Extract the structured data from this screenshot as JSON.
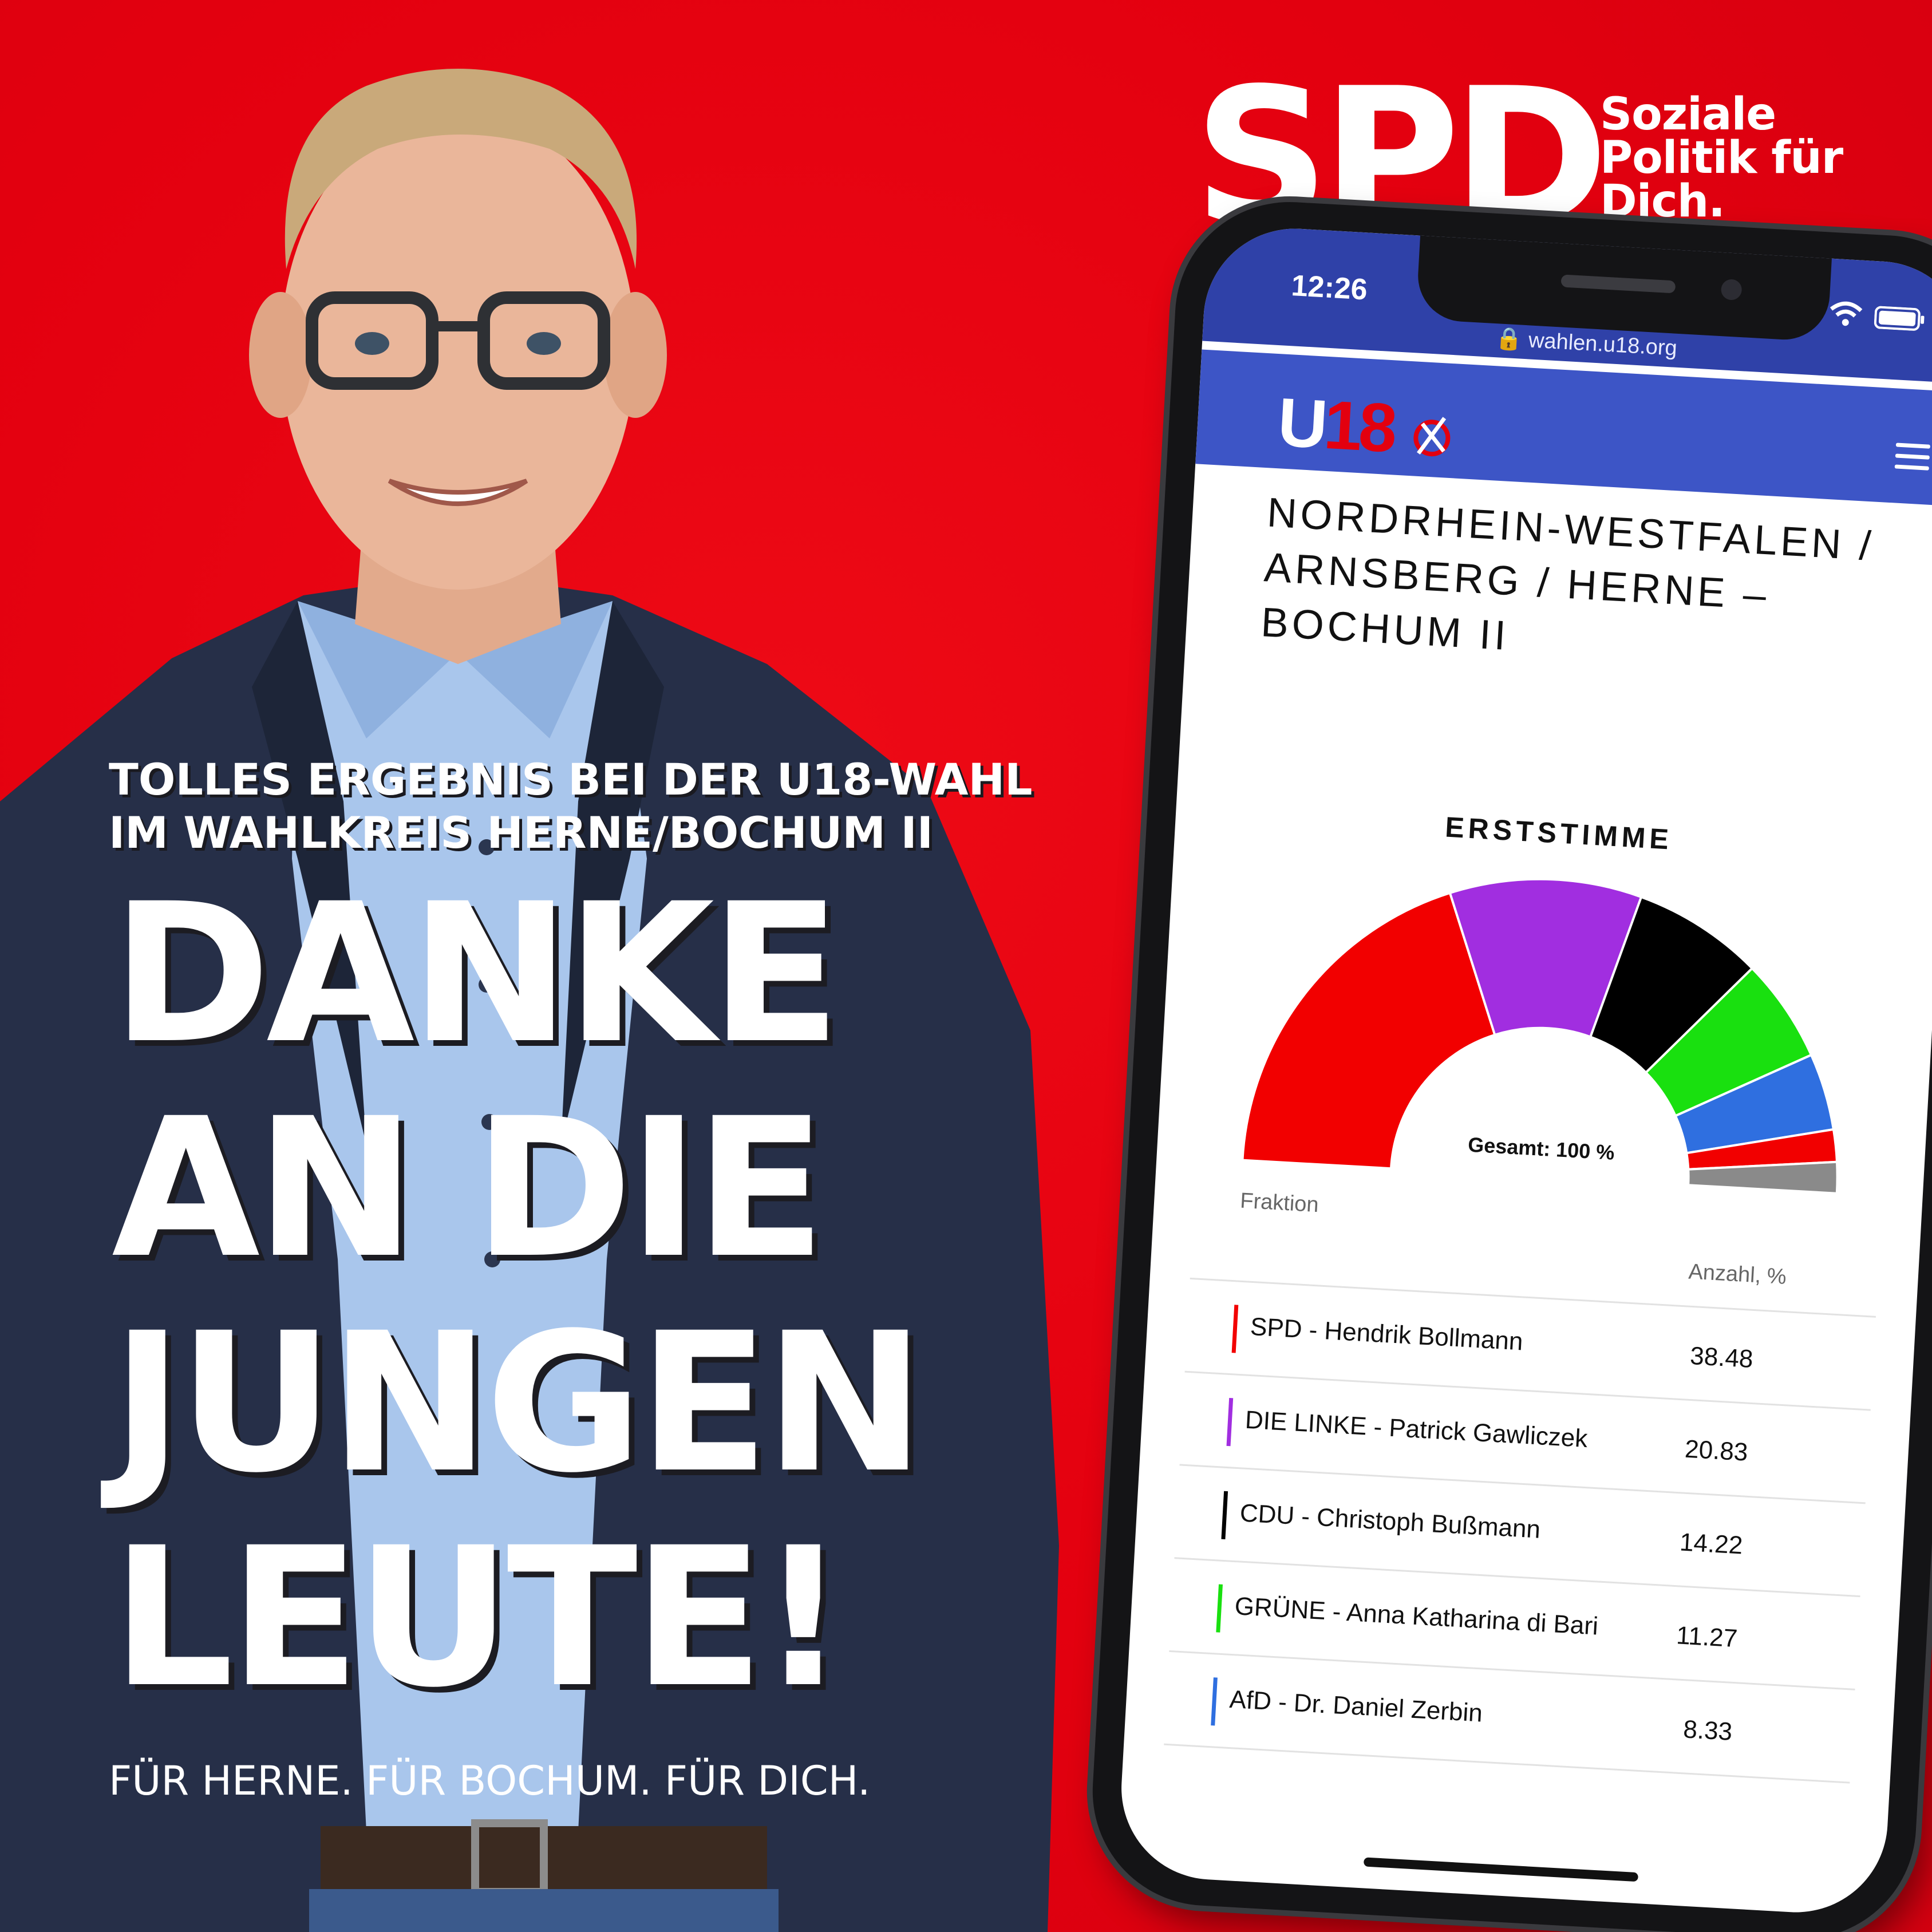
{
  "brand": {
    "logo": "SPD",
    "tagline": [
      "Soziale",
      "Politik für",
      "Dich."
    ]
  },
  "subtitle": [
    "TOLLES ERGEBNIS BEI DER U18-WAHL",
    "IM WAHLKREIS HERNE/BOCHUM II"
  ],
  "headline": [
    "DANKE",
    "AN DIE",
    "JUNGEN",
    "LEUTE!"
  ],
  "footer_slogan": "FÜR HERNE. FÜR BOCHUM. FÜR DICH.",
  "phone": {
    "time": "12:26",
    "url": "wahlen.u18.org",
    "site_logo_u": "U",
    "site_logo_18": "18",
    "region_title": "NORDRHEIN-WESTFALEN / ARNSBERG / HERNE – BOCHUM II",
    "chart_title": "ERSTSTIMME",
    "total_label": "Gesamt: 100 %",
    "table": {
      "col_party": "Fraktion",
      "col_value": "Anzahl, %"
    }
  },
  "chart_data": {
    "type": "pie",
    "title": "ERSTSTIMME",
    "categories": [
      "SPD - Hendrik Bollmann",
      "DIE LINKE - Patrick Gawliczek",
      "CDU - Christoph Bußmann",
      "GRÜNE - Anna Katharina di Bari",
      "AfD - Dr. Daniel Zerbin"
    ],
    "values": [
      38.48,
      20.83,
      14.22,
      11.27,
      8.33
    ],
    "value_labels": [
      "38.48",
      "20.83",
      "14.22",
      "11.27",
      "8.33"
    ],
    "colors": [
      "#f20000",
      "#a12ee0",
      "#000000",
      "#19e00f",
      "#2f6fe0"
    ],
    "extra_segments_colors": [
      "#f20000",
      "#8a8a8a"
    ],
    "extra_segments_values": [
      3.5,
      3.37
    ],
    "shape": "semi-donut"
  },
  "colors": {
    "spd_red": "#e3000f",
    "site_blue": "#3d55c6",
    "status_blue": "#2f41a8"
  }
}
